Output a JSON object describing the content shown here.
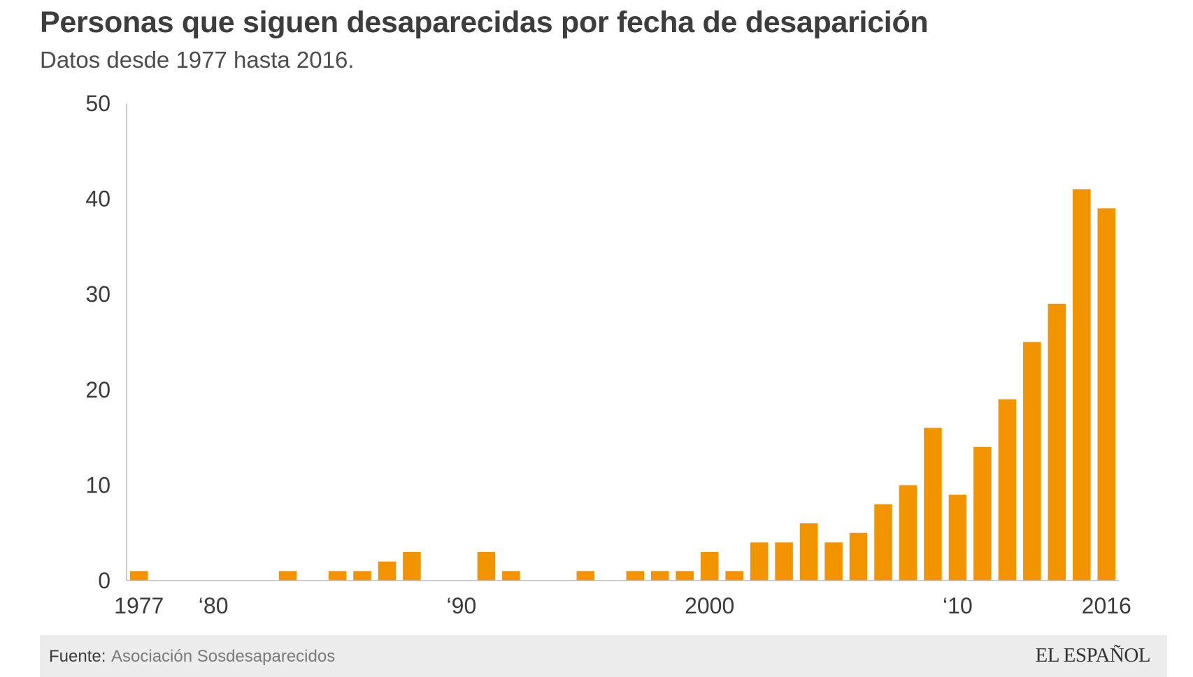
{
  "header": {
    "title": "Personas que siguen desaparecidas por fecha de desaparición",
    "subtitle": "Datos desde 1977 hasta 2016."
  },
  "footer": {
    "source_label": "Fuente:",
    "source_value": "Asociación Sosdesaparecidos",
    "brand": "EL ESPAÑOL"
  },
  "colors": {
    "bar": "#f29400",
    "axis": "#bbbbbb",
    "footer_bg": "#ececec"
  },
  "chart_data": {
    "type": "bar",
    "title": "Personas que siguen desaparecidas por fecha de desaparición",
    "subtitle": "Datos desde 1977 hasta 2016.",
    "xlabel": "",
    "ylabel": "",
    "ylim": [
      0,
      50
    ],
    "y_ticks": [
      0,
      10,
      20,
      30,
      40,
      50
    ],
    "grid": false,
    "legend": "none",
    "x_tick_labels": [
      {
        "year": 1977,
        "label": "1977"
      },
      {
        "year": 1980,
        "label": "‘80"
      },
      {
        "year": 1990,
        "label": "‘90"
      },
      {
        "year": 2000,
        "label": "2000"
      },
      {
        "year": 2010,
        "label": "‘10"
      },
      {
        "year": 2016,
        "label": "2016"
      }
    ],
    "categories": [
      1977,
      1978,
      1979,
      1980,
      1981,
      1982,
      1983,
      1984,
      1985,
      1986,
      1987,
      1988,
      1989,
      1990,
      1991,
      1992,
      1993,
      1994,
      1995,
      1996,
      1997,
      1998,
      1999,
      2000,
      2001,
      2002,
      2003,
      2004,
      2005,
      2006,
      2007,
      2008,
      2009,
      2010,
      2011,
      2012,
      2013,
      2014,
      2015,
      2016
    ],
    "values": [
      1,
      0,
      0,
      0,
      0,
      0,
      1,
      0,
      1,
      1,
      2,
      3,
      0,
      0,
      3,
      1,
      0,
      0,
      1,
      0,
      1,
      1,
      1,
      3,
      1,
      4,
      4,
      6,
      4,
      5,
      8,
      10,
      16,
      9,
      14,
      19,
      25,
      29,
      41,
      39
    ]
  }
}
